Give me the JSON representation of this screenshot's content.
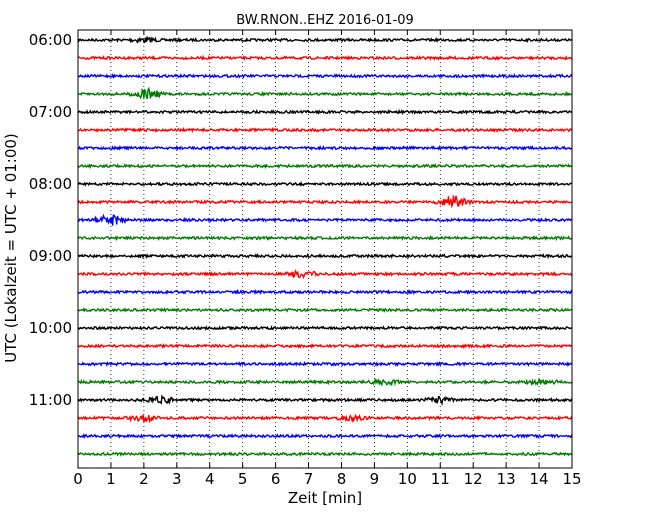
{
  "chart_data": {
    "type": "line",
    "title": "BW.RNON..EHZ 2016-01-09",
    "xlabel": "Zeit  [min]",
    "ylabel": "UTC (Lokalzeit = UTC + 01:00)",
    "xlim": [
      0,
      15
    ],
    "x_ticks": [
      "0",
      "1",
      "2",
      "3",
      "4",
      "5",
      "6",
      "7",
      "8",
      "9",
      "10",
      "11",
      "12",
      "13",
      "14",
      "15"
    ],
    "y_tick_labels": [
      "06:00",
      "07:00",
      "08:00",
      "09:00",
      "10:00",
      "11:00"
    ],
    "grid": "vertical dotted",
    "trace_interval_min": 15,
    "colors": [
      "#000000",
      "#ff0000",
      "#0000ff",
      "#008000"
    ],
    "traces": [
      {
        "start": "06:00",
        "color": "#000000",
        "events": [
          {
            "x": 2.0,
            "amp": 2
          }
        ]
      },
      {
        "start": "06:15",
        "color": "#ff0000",
        "events": []
      },
      {
        "start": "06:30",
        "color": "#0000ff",
        "events": []
      },
      {
        "start": "06:45",
        "color": "#008000",
        "events": [
          {
            "x": 2.1,
            "amp": 5
          }
        ]
      },
      {
        "start": "07:00",
        "color": "#000000",
        "events": []
      },
      {
        "start": "07:15",
        "color": "#ff0000",
        "events": []
      },
      {
        "start": "07:30",
        "color": "#0000ff",
        "events": []
      },
      {
        "start": "07:45",
        "color": "#008000",
        "events": []
      },
      {
        "start": "08:00",
        "color": "#000000",
        "events": []
      },
      {
        "start": "08:15",
        "color": "#ff0000",
        "events": [
          {
            "x": 11.4,
            "amp": 6
          }
        ]
      },
      {
        "start": "08:30",
        "color": "#0000ff",
        "events": [
          {
            "x": 1.0,
            "amp": 5
          }
        ]
      },
      {
        "start": "08:45",
        "color": "#008000",
        "events": []
      },
      {
        "start": "09:00",
        "color": "#000000",
        "events": []
      },
      {
        "start": "09:15",
        "color": "#ff0000",
        "events": [
          {
            "x": 6.8,
            "amp": 3
          }
        ]
      },
      {
        "start": "09:30",
        "color": "#0000ff",
        "events": []
      },
      {
        "start": "09:45",
        "color": "#008000",
        "events": []
      },
      {
        "start": "10:00",
        "color": "#000000",
        "events": []
      },
      {
        "start": "10:15",
        "color": "#ff0000",
        "events": []
      },
      {
        "start": "10:30",
        "color": "#0000ff",
        "events": []
      },
      {
        "start": "10:45",
        "color": "#008000",
        "events": [
          {
            "x": 9.3,
            "amp": 2
          },
          {
            "x": 14.1,
            "amp": 2
          }
        ]
      },
      {
        "start": "11:00",
        "color": "#000000",
        "events": [
          {
            "x": 2.5,
            "amp": 3
          },
          {
            "x": 11.0,
            "amp": 3
          }
        ]
      },
      {
        "start": "11:15",
        "color": "#ff0000",
        "events": [
          {
            "x": 2.0,
            "amp": 3
          },
          {
            "x": 8.3,
            "amp": 2
          }
        ]
      },
      {
        "start": "11:30",
        "color": "#0000ff",
        "events": []
      },
      {
        "start": "11:45",
        "color": "#008000",
        "events": []
      }
    ]
  }
}
